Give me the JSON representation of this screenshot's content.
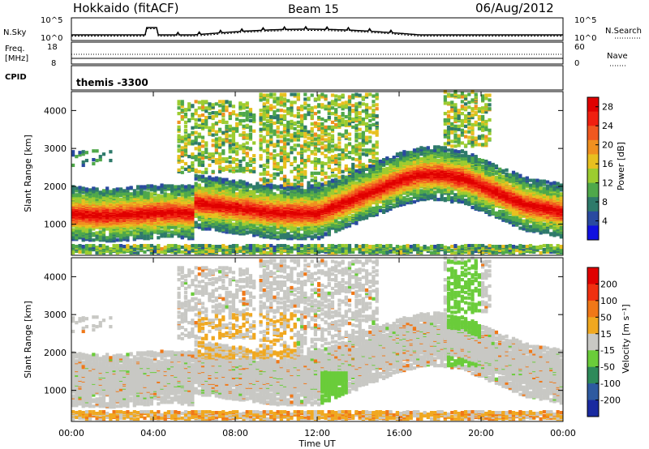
{
  "header": {
    "station": "Hokkaido (fitACF)",
    "beam": "Beam 15",
    "date": "06/Aug/2012"
  },
  "top_panels": {
    "nsky_label": "N.Sky",
    "nsky_ticks": [
      "10^5",
      "10^0"
    ],
    "nsearch_label": "N.Search",
    "nsearch_ticks": [
      "10^5",
      "10^0"
    ],
    "freq_label": "Freq.",
    "freq_unit": "[MHz]",
    "freq_ticks": [
      "18",
      "8"
    ],
    "nave_label": "Nave",
    "nave_ticks": [
      "60",
      "0"
    ],
    "cpid_label": "CPID",
    "cpid_value": "themis -3300"
  },
  "chart_data": [
    {
      "type": "heatmap",
      "name": "power",
      "ylabel": "Slant Range [km]",
      "ylim": [
        180,
        4500
      ],
      "yticks": [
        "1000",
        "2000",
        "3000",
        "4000"
      ],
      "xlim": [
        0,
        24
      ],
      "colorbar": {
        "label": "Power [dB]",
        "ticks": [
          "4",
          "8",
          "12",
          "16",
          "20",
          "24",
          "28"
        ],
        "range": [
          0,
          30
        ],
        "colors": [
          "#1010e0",
          "#2a4aa0",
          "#2e7a6a",
          "#4fa84a",
          "#9ccc30",
          "#e8c020",
          "#f09020",
          "#f05820",
          "#f02010",
          "#e00000"
        ]
      }
    },
    {
      "type": "heatmap",
      "name": "velocity",
      "ylabel": "Slant Range [km]",
      "ylim": [
        180,
        4500
      ],
      "yticks": [
        "1000",
        "2000",
        "3000",
        "4000"
      ],
      "xlim": [
        0,
        24
      ],
      "colorbar": {
        "label": "Velocity [m s⁻¹]",
        "ticks": [
          "200",
          "100",
          "50",
          "15",
          "-15",
          "-50",
          "-100",
          "-200"
        ],
        "colors": [
          "#1a2aa0",
          "#2e5aa0",
          "#2e8a5a",
          "#6acc3a",
          "#c8c8c4",
          "#f0a820",
          "#f07818",
          "#f03010",
          "#e00000"
        ]
      }
    }
  ],
  "x_axis": {
    "label": "Time UT",
    "ticks": [
      "00:00",
      "04:00",
      "08:00",
      "12:00",
      "16:00",
      "20:00",
      "00:00"
    ]
  }
}
